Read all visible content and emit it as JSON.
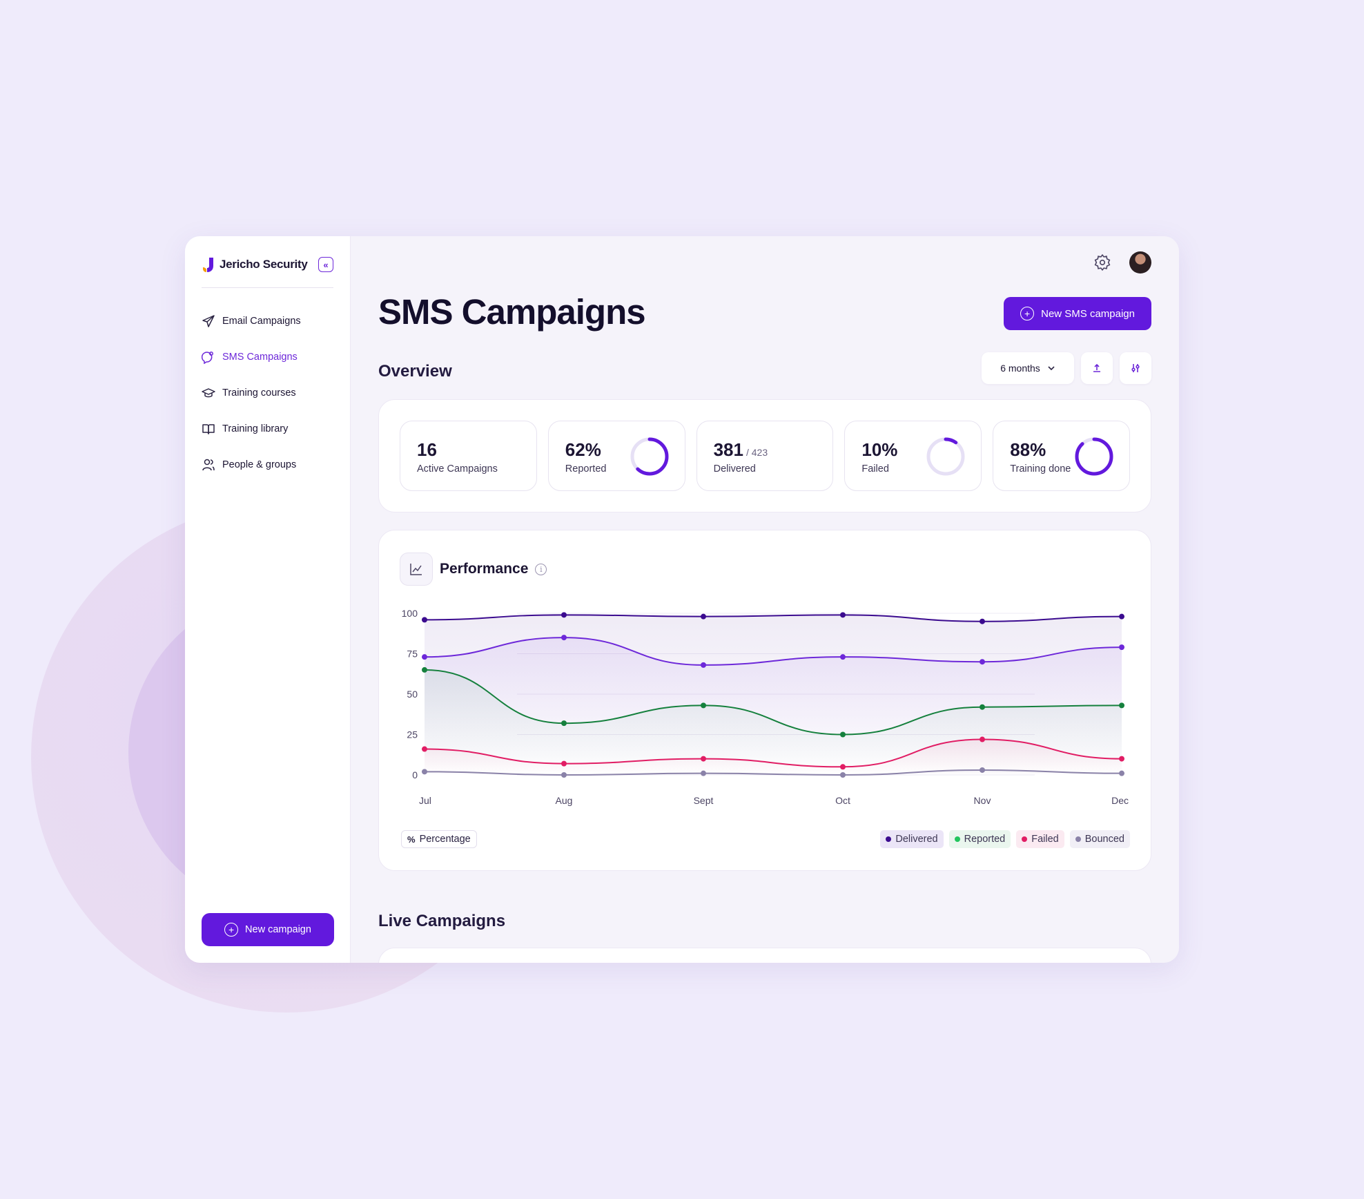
{
  "brand": {
    "name": "Jericho Security"
  },
  "sidebar": {
    "collapse_icon": "double-chevron-left-icon",
    "items": [
      {
        "label": "Email Campaigns",
        "icon": "send-icon",
        "active": false
      },
      {
        "label": "SMS Campaigns",
        "icon": "chat-bubble-icon",
        "active": true
      },
      {
        "label": "Training courses",
        "icon": "graduation-cap-icon",
        "active": false
      },
      {
        "label": "Training library",
        "icon": "book-icon",
        "active": false
      },
      {
        "label": "People & groups",
        "icon": "users-icon",
        "active": false
      }
    ],
    "new_campaign_label": "New campaign"
  },
  "header": {
    "title": "SMS Campaigns",
    "new_sms_label": "New SMS campaign"
  },
  "overview": {
    "title": "Overview",
    "range_select": "6 months",
    "stats": [
      {
        "value": "16",
        "label": "Active Campaigns"
      },
      {
        "value": "62%",
        "label": "Reported",
        "ring_fraction": 0.62
      },
      {
        "value": "381",
        "sub": "/ 423",
        "label": "Delivered"
      },
      {
        "value": "10%",
        "label": "Failed",
        "ring_fraction": 0.1
      },
      {
        "value": "88%",
        "label": "Training done",
        "ring_fraction": 0.88
      }
    ]
  },
  "performance": {
    "title": "Performance",
    "unit_badge_symbol": "%",
    "unit_badge_label": "Percentage"
  },
  "chart_data": {
    "type": "line",
    "x": [
      "Jul",
      "Aug",
      "Sept",
      "Oct",
      "Nov",
      "Dec"
    ],
    "ylim": [
      0,
      100
    ],
    "yticks": [
      0,
      25,
      50,
      75,
      100
    ],
    "series": [
      {
        "name": "Delivered",
        "color": "#3b0b8f",
        "values": [
          96,
          99,
          98,
          99,
          95,
          98
        ],
        "show_in_legend": true
      },
      {
        "name": "",
        "color": "#6d28d9",
        "values": [
          73,
          85,
          68,
          73,
          70,
          79
        ],
        "show_in_legend": false
      },
      {
        "name": "Reported",
        "color": "#15803d",
        "values": [
          65,
          32,
          43,
          25,
          42,
          43
        ],
        "show_in_legend": true
      },
      {
        "name": "Failed",
        "color": "#e11d64",
        "values": [
          16,
          7,
          10,
          5,
          22,
          10
        ],
        "show_in_legend": true
      },
      {
        "name": "Bounced",
        "color": "#8a82a8",
        "values": [
          2,
          0,
          1,
          0,
          3,
          1
        ],
        "show_in_legend": true
      }
    ],
    "legend_position": "bottom-right",
    "grid": true
  },
  "live": {
    "title": "Live Campaigns"
  },
  "colors": {
    "accent": "#6219dd",
    "background": "#efebfb"
  }
}
